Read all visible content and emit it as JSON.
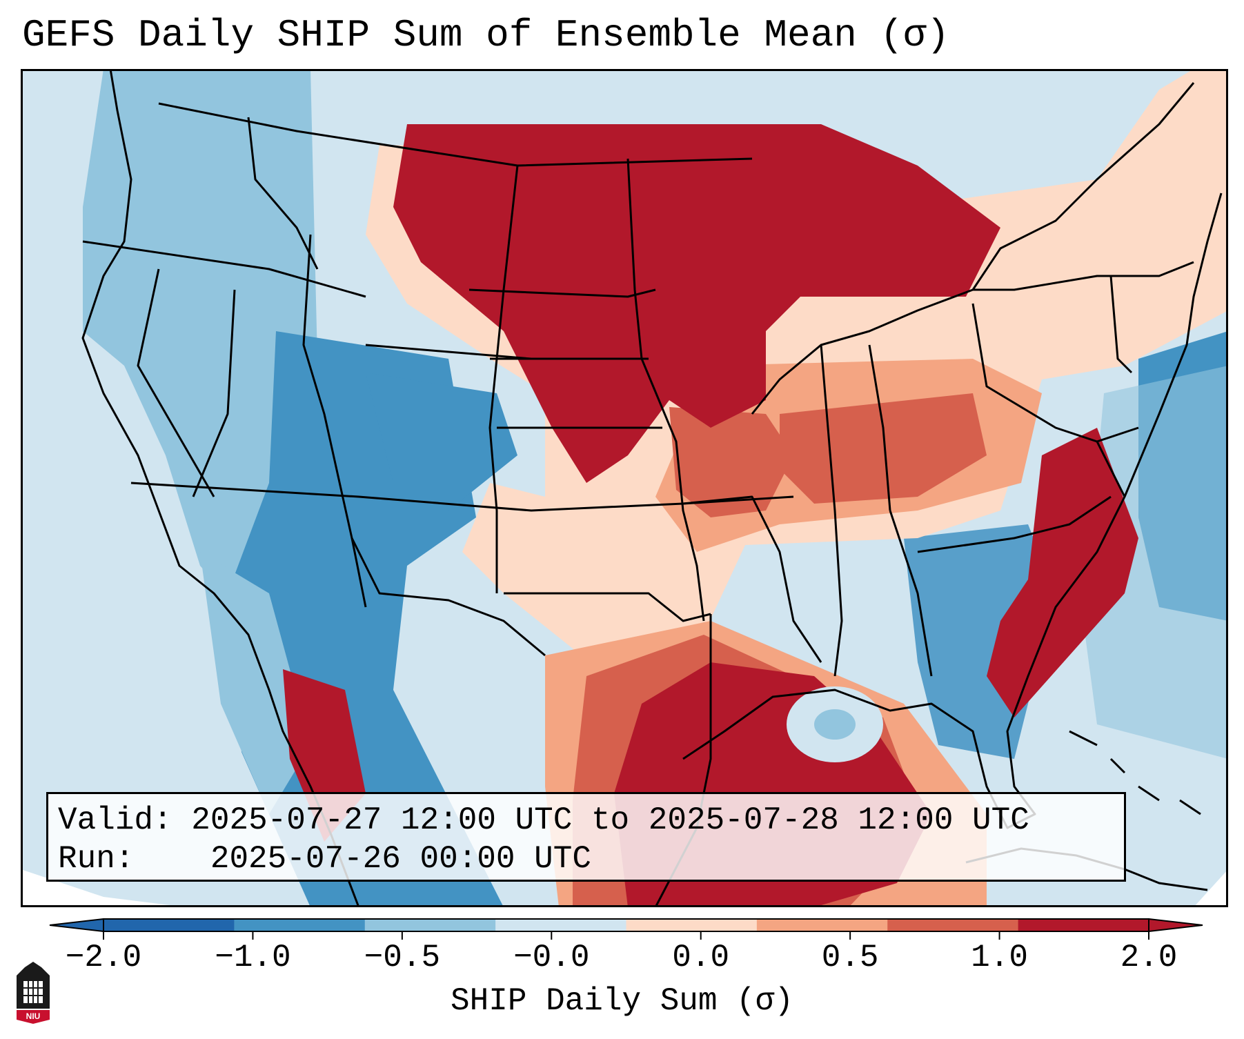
{
  "title": "GEFS Daily SHIP Sum of Ensemble Mean (σ)",
  "info": {
    "valid_label": "Valid:",
    "valid_value": "2025-07-27 12:00 UTC to 2025-07-28 12:00 UTC",
    "run_label": "Run:",
    "run_value": "2025-07-26 00:00 UTC"
  },
  "colorbar": {
    "label": "SHIP Daily Sum (σ)",
    "ticks": [
      "−2.0",
      "−1.0",
      "−0.5",
      "−0.0",
      "0.0",
      "0.5",
      "1.0",
      "2.0"
    ],
    "colors": [
      "#2166ac",
      "#4393c3",
      "#92c5de",
      "#d1e5f0",
      "#fddbc7",
      "#f4a582",
      "#d6604d",
      "#b2182b"
    ],
    "extend": "both"
  },
  "logo": {
    "text": "NIU",
    "icon": "niu-university-seal-icon"
  }
}
